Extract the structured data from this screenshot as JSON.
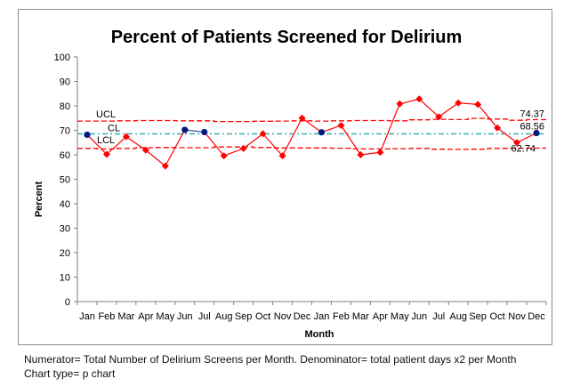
{
  "chart_data": {
    "type": "line",
    "title": "Percent of Patients Screened for Delirium",
    "xlabel": "Month",
    "ylabel": "Percent",
    "ylim": [
      0,
      100
    ],
    "yticks": [
      0,
      10,
      20,
      30,
      40,
      50,
      60,
      70,
      80,
      90,
      100
    ],
    "categories": [
      "Jan",
      "Feb",
      "Mar",
      "Apr",
      "May",
      "Jun",
      "Jul",
      "Aug",
      "Sep",
      "Oct",
      "Nov",
      "Dec",
      "Jan",
      "Feb",
      "Mar",
      "Apr",
      "May",
      "Jun",
      "Jul",
      "Aug",
      "Sep",
      "Oct",
      "Nov",
      "Dec"
    ],
    "values": [
      68.2,
      60.2,
      67.4,
      61.9,
      55.4,
      70.2,
      69.3,
      59.6,
      62.6,
      68.6,
      59.6,
      75.0,
      69.2,
      72.0,
      60.0,
      61.0,
      80.8,
      82.8,
      75.5,
      81.2,
      80.6,
      71.0,
      65.0,
      68.9
    ],
    "point_status": [
      "in",
      "out",
      "out",
      "out",
      "out",
      "in",
      "in",
      "out",
      "out",
      "out",
      "out",
      "out",
      "in",
      "out",
      "out",
      "out",
      "out",
      "out",
      "out",
      "out",
      "out",
      "out",
      "out",
      "in"
    ],
    "segment_colors": {
      "in": "#2f3fae",
      "out": "#ff0000"
    },
    "marker_colors": {
      "in": "#001a80",
      "out": "#ff0000"
    },
    "ucl_values": [
      73.8,
      73.8,
      73.9,
      74.0,
      74.0,
      73.9,
      73.9,
      73.6,
      73.6,
      73.7,
      73.8,
      73.9,
      73.8,
      73.9,
      74.0,
      74.0,
      73.9,
      74.3,
      74.5,
      74.4,
      74.9,
      74.6,
      74.1,
      74.37
    ],
    "lcl_values": [
      62.6,
      62.4,
      62.6,
      62.9,
      63.0,
      62.9,
      62.9,
      63.2,
      63.2,
      63.0,
      62.8,
      62.8,
      62.8,
      62.7,
      62.4,
      62.4,
      62.5,
      62.6,
      62.3,
      62.2,
      62.3,
      62.6,
      62.7,
      62.74
    ],
    "cl": 68.56,
    "limit_color": "#ff0000",
    "cl_color": "#2aa8a8",
    "line_labels": {
      "ucl": "UCL",
      "cl": "CL",
      "lcl": "LCL"
    },
    "end_labels": {
      "ucl": "74.37",
      "cl": "68.56",
      "lcl": "62.74"
    },
    "grid": false,
    "legend": "none"
  },
  "footnotes": {
    "line1": "Numerator= Total Number of Delirium Screens per Month.  Denominator= total patient days x2 per Month",
    "line2": "Chart type= p chart"
  }
}
